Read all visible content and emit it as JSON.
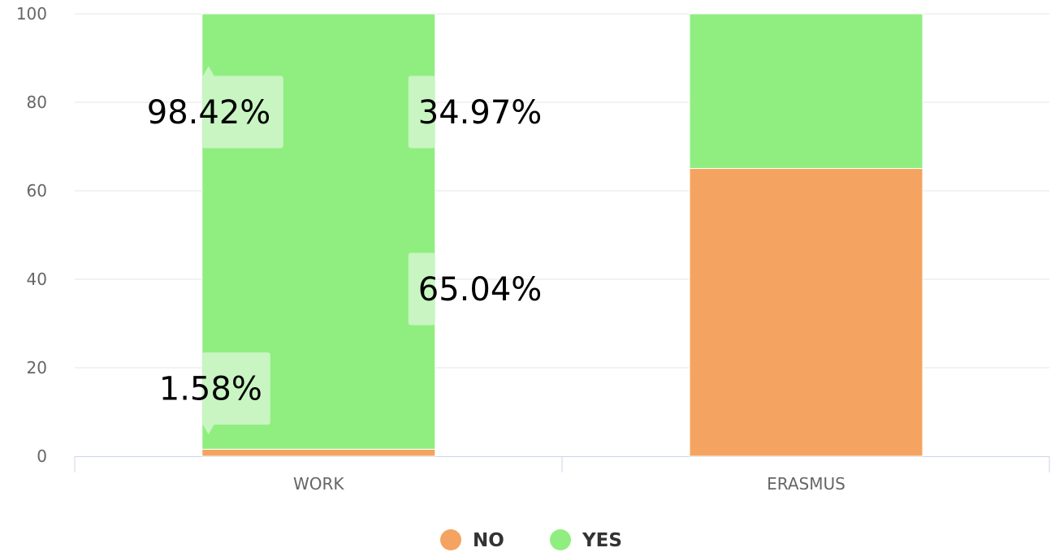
{
  "chart_data": {
    "type": "bar",
    "stacked": true,
    "categories": [
      "WORK",
      "ERASMUS"
    ],
    "series": [
      {
        "name": "NO",
        "values": [
          1.58,
          65.04
        ],
        "color": "#f4a460"
      },
      {
        "name": "YES",
        "values": [
          98.42,
          34.97
        ],
        "color": "#90ee80"
      }
    ],
    "data_labels": [
      "98.42%",
      "34.97%",
      "65.04%",
      "1.58%"
    ],
    "ylim": [
      0,
      100
    ],
    "yticks": [
      0,
      20,
      40,
      60,
      80,
      100
    ],
    "grid": true,
    "legend_position": "bottom",
    "colors": {
      "grid": "#e6e6e6",
      "axis": "#ccd6eb",
      "label_box": "#c8f5c2"
    }
  }
}
